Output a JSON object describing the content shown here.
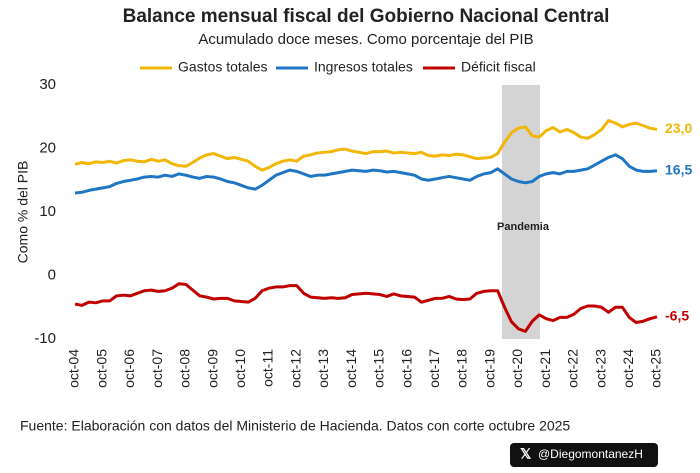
{
  "chart_data": {
    "type": "line",
    "title": "Balance mensual fiscal del Gobierno Nacional Central",
    "subtitle": "Acumulado doce meses. Como porcentaje del PIB",
    "y_label": "Como % del PIB",
    "annotation": "Pandemia",
    "source": "Fuente: Elaboración con datos del Ministerio de Hacienda. Datos con corte octubre 2025",
    "credit": "@DiegomontanezH",
    "ylim": [
      -10,
      30
    ],
    "yticks": [
      -10,
      0,
      10,
      20,
      30
    ],
    "grid": false,
    "legend": "top",
    "categories": [
      "oct-04",
      null,
      null,
      null,
      "oct-05",
      null,
      null,
      null,
      "oct-06",
      null,
      null,
      null,
      "oct-07",
      null,
      null,
      null,
      "oct-08",
      null,
      null,
      null,
      "oct-09",
      null,
      null,
      null,
      "oct-10",
      null,
      null,
      null,
      "oct-11",
      null,
      null,
      null,
      "oct-12",
      null,
      null,
      null,
      "oct-13",
      null,
      null,
      null,
      "oct-14",
      null,
      null,
      null,
      "oct-15",
      null,
      null,
      null,
      "oct-16",
      null,
      null,
      null,
      "oct-17",
      null,
      null,
      null,
      "oct-18",
      null,
      null,
      null,
      "oct-19",
      null,
      null,
      null,
      "oct-20",
      null,
      null,
      null,
      "oct-21",
      null,
      null,
      null,
      "oct-22",
      null,
      null,
      null,
      "oct-23",
      null,
      null,
      null,
      "oct-24",
      null,
      null,
      null,
      "oct-25"
    ],
    "series": [
      {
        "name": "Gastos totales",
        "color": "#f2b705",
        "values": [
          17.5,
          17.8,
          17.6,
          17.9,
          17.8,
          18.0,
          17.7,
          18.1,
          18.2,
          18.0,
          17.9,
          18.3,
          18.0,
          18.2,
          17.6,
          17.3,
          17.2,
          17.8,
          18.5,
          19.0,
          19.2,
          18.8,
          18.4,
          18.6,
          18.3,
          18.0,
          17.2,
          16.6,
          17.0,
          17.6,
          18.0,
          18.2,
          18.0,
          18.8,
          19.0,
          19.3,
          19.4,
          19.5,
          19.8,
          19.9,
          19.6,
          19.4,
          19.2,
          19.5,
          19.5,
          19.6,
          19.3,
          19.4,
          19.3,
          19.2,
          19.4,
          18.9,
          18.8,
          19.0,
          18.9,
          19.1,
          19.0,
          18.7,
          18.4,
          18.5,
          18.6,
          19.2,
          21.0,
          22.5,
          23.2,
          23.4,
          22.0,
          21.8,
          22.8,
          23.3,
          22.6,
          23.0,
          22.5,
          21.8,
          21.6,
          22.2,
          23.0,
          24.4,
          24.0,
          23.4,
          23.8,
          24.0,
          23.6,
          23.2,
          23.0
        ],
        "value_labels": [
          null,
          null,
          null,
          null,
          null,
          null,
          null,
          null,
          null,
          null,
          null,
          null,
          null,
          null,
          null,
          null,
          null,
          null,
          null,
          null,
          null,
          null,
          null,
          null,
          null,
          null,
          null,
          null,
          null,
          null,
          null,
          null,
          null,
          null,
          null,
          null,
          null,
          null,
          null,
          null,
          null,
          null,
          null,
          null,
          null,
          null,
          null,
          null,
          null,
          null,
          null,
          null,
          null,
          null,
          null,
          null,
          null,
          null,
          null,
          null,
          null,
          null,
          null,
          null,
          null,
          null,
          null,
          null,
          null,
          null,
          null,
          null,
          null,
          null,
          null,
          null,
          null,
          null,
          null,
          null,
          null,
          null,
          null,
          null,
          "23,0"
        ]
      },
      {
        "name": "Ingresos totales",
        "color": "#1f77c4",
        "values": [
          13.0,
          13.1,
          13.4,
          13.6,
          13.8,
          14.0,
          14.5,
          14.8,
          15.0,
          15.2,
          15.5,
          15.6,
          15.5,
          15.8,
          15.6,
          16.0,
          15.8,
          15.5,
          15.3,
          15.6,
          15.5,
          15.2,
          14.8,
          14.6,
          14.2,
          13.8,
          13.6,
          14.2,
          15.0,
          15.8,
          16.2,
          16.6,
          16.4,
          16.0,
          15.6,
          15.8,
          15.8,
          16.0,
          16.2,
          16.4,
          16.6,
          16.5,
          16.4,
          16.6,
          16.5,
          16.3,
          16.4,
          16.2,
          16.0,
          15.8,
          15.2,
          15.0,
          15.2,
          15.4,
          15.6,
          15.4,
          15.2,
          15.0,
          15.6,
          16.0,
          16.2,
          16.8,
          16.0,
          15.2,
          14.8,
          14.6,
          14.8,
          15.6,
          16.0,
          16.2,
          16.0,
          16.4,
          16.4,
          16.6,
          16.8,
          17.4,
          18.0,
          18.6,
          19.0,
          18.4,
          17.2,
          16.6,
          16.4,
          16.4,
          16.5
        ],
        "value_labels": [
          null,
          null,
          null,
          null,
          null,
          null,
          null,
          null,
          null,
          null,
          null,
          null,
          null,
          null,
          null,
          null,
          null,
          null,
          null,
          null,
          null,
          null,
          null,
          null,
          null,
          null,
          null,
          null,
          null,
          null,
          null,
          null,
          null,
          null,
          null,
          null,
          null,
          null,
          null,
          null,
          null,
          null,
          null,
          null,
          null,
          null,
          null,
          null,
          null,
          null,
          null,
          null,
          null,
          null,
          null,
          null,
          null,
          null,
          null,
          null,
          null,
          null,
          null,
          null,
          null,
          null,
          null,
          null,
          null,
          null,
          null,
          null,
          null,
          null,
          null,
          null,
          null,
          null,
          null,
          null,
          null,
          null,
          null,
          null,
          "16,5"
        ]
      },
      {
        "name": "Déficit fiscal",
        "color": "#c00000",
        "values": [
          -4.5,
          -4.7,
          -4.2,
          -4.3,
          -4.0,
          -4.0,
          -3.2,
          -3.1,
          -3.2,
          -2.8,
          -2.4,
          -2.3,
          -2.5,
          -2.4,
          -2.0,
          -1.3,
          -1.4,
          -2.3,
          -3.2,
          -3.4,
          -3.7,
          -3.6,
          -3.6,
          -4.0,
          -4.1,
          -4.2,
          -3.6,
          -2.4,
          -2.0,
          -1.8,
          -1.8,
          -1.6,
          -1.6,
          -2.8,
          -3.4,
          -3.5,
          -3.6,
          -3.5,
          -3.6,
          -3.5,
          -3.0,
          -2.9,
          -2.8,
          -2.9,
          -3.0,
          -3.3,
          -2.9,
          -3.2,
          -3.3,
          -3.4,
          -4.2,
          -3.9,
          -3.6,
          -3.6,
          -3.3,
          -3.7,
          -3.8,
          -3.7,
          -2.8,
          -2.5,
          -2.4,
          -2.4,
          -5.0,
          -7.3,
          -8.4,
          -8.8,
          -7.2,
          -6.2,
          -6.8,
          -7.1,
          -6.6,
          -6.6,
          -6.1,
          -5.2,
          -4.8,
          -4.8,
          -5.0,
          -5.8,
          -5.0,
          -5.0,
          -6.6,
          -7.4,
          -7.2,
          -6.8,
          -6.5
        ],
        "value_labels": [
          null,
          null,
          null,
          null,
          null,
          null,
          null,
          null,
          null,
          null,
          null,
          null,
          null,
          null,
          null,
          null,
          null,
          null,
          null,
          null,
          null,
          null,
          null,
          null,
          null,
          null,
          null,
          null,
          null,
          null,
          null,
          null,
          null,
          null,
          null,
          null,
          null,
          null,
          null,
          null,
          null,
          null,
          null,
          null,
          null,
          null,
          null,
          null,
          null,
          null,
          null,
          null,
          null,
          null,
          null,
          null,
          null,
          null,
          null,
          null,
          null,
          null,
          null,
          null,
          null,
          null,
          null,
          null,
          null,
          null,
          null,
          null,
          null,
          null,
          null,
          null,
          null,
          null,
          null,
          null,
          null,
          null,
          null,
          null,
          "-6,5"
        ]
      }
    ]
  }
}
